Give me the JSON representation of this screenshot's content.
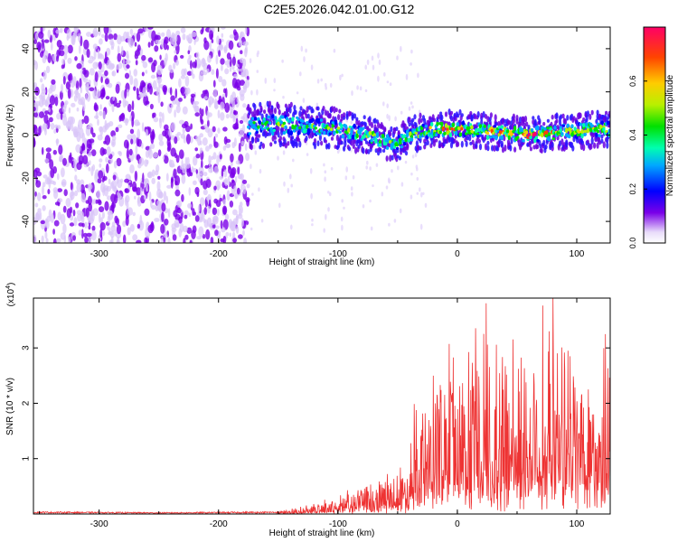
{
  "title": "C2E5.2026.042.01.00.G12",
  "chart_data": [
    {
      "type": "heatmap",
      "title": "C2E5.2026.042.01.00.G12",
      "xlabel": "Height of straight line (km)",
      "ylabel": "Frequency (Hz)",
      "xlim": [
        -355,
        128
      ],
      "ylim": [
        -50,
        50
      ],
      "x_ticks": [
        -300,
        -200,
        -100,
        0,
        100
      ],
      "y_ticks": [
        -40,
        -20,
        0,
        20,
        40
      ],
      "colorbar": {
        "label": "Normalized spectral amplitude",
        "range": [
          0,
          0.8
        ],
        "ticks": [
          "0.0",
          "0.2",
          "0.4",
          "0.6"
        ]
      },
      "noise_region": {
        "x_range": [
          -355,
          -175
        ],
        "freq_range": [
          -50,
          50
        ],
        "typical_amplitude": 0.15
      },
      "signal_band": {
        "x": [
          -175,
          -150,
          -125,
          -100,
          -75,
          -60,
          -50,
          -40,
          -25,
          -10,
          0,
          20,
          40,
          60,
          80,
          100,
          128
        ],
        "center_freq": [
          4,
          5,
          4,
          3,
          0,
          -3,
          -4,
          0,
          2,
          3,
          3,
          2,
          1,
          0,
          1,
          2,
          3
        ],
        "width": [
          8,
          8,
          7,
          7,
          6,
          6,
          6,
          6,
          6,
          6,
          6,
          6,
          6,
          6,
          6,
          6,
          6
        ],
        "peak_amplitude": [
          0.4,
          0.45,
          0.4,
          0.4,
          0.5,
          0.55,
          0.45,
          0.45,
          0.6,
          0.6,
          0.6,
          0.55,
          0.6,
          0.65,
          0.6,
          0.55,
          0.5
        ]
      }
    },
    {
      "type": "line",
      "xlabel": "Height of straight line (km)",
      "ylabel": "SNR (10 * v/v)",
      "y_scale_note": "(x10",
      "y_scale_exp": "4",
      "xlim": [
        -355,
        128
      ],
      "ylim": [
        0,
        3.9
      ],
      "x_ticks": [
        -300,
        -200,
        -100,
        0,
        100
      ],
      "y_ticks": [
        1,
        2,
        3
      ],
      "series": [
        {
          "name": "SNR",
          "color": "#ee3333",
          "x": [
            -355,
            -250,
            -150,
            -120,
            -100,
            -85,
            -75,
            -60,
            -45,
            -35,
            -20,
            -5,
            10,
            25,
            40,
            55,
            70,
            85,
            100,
            115,
            128
          ],
          "y": [
            0.03,
            0.02,
            0.03,
            0.08,
            0.15,
            0.25,
            0.25,
            0.35,
            0.5,
            0.9,
            1.3,
            1.5,
            1.5,
            1.6,
            1.65,
            1.6,
            1.7,
            1.75,
            1.6,
            1.5,
            1.4
          ]
        }
      ]
    }
  ]
}
